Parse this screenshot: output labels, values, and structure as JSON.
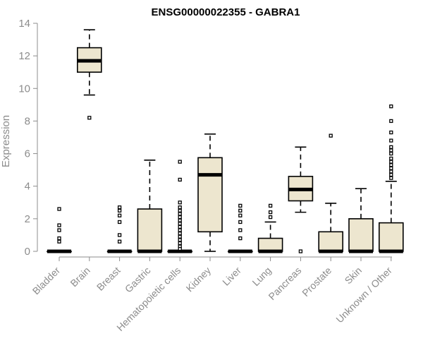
{
  "chart_data": {
    "type": "boxplot",
    "title": "ENSG00000022355 - GABRA1",
    "ylabel": "Expression",
    "xlabel": "",
    "ylim": [
      0,
      14
    ],
    "yticks": [
      0,
      2,
      4,
      6,
      8,
      10,
      12,
      14
    ],
    "box_fill": "#ede6cf",
    "categories": [
      "Bladder",
      "Brain",
      "Breast",
      "Gastric",
      "Hematopoietic cells",
      "Kidney",
      "Liver",
      "Lung",
      "Pancreas",
      "Prostate",
      "Skin",
      "Unknown / Other"
    ],
    "boxes": [
      {
        "category": "Bladder",
        "whisker_low": 0,
        "q1": 0,
        "median": 0,
        "q3": 0,
        "whisker_high": 0,
        "outliers": [
          2.6,
          1.6,
          1.3,
          0.8,
          0.6
        ]
      },
      {
        "category": "Brain",
        "whisker_low": 9.6,
        "q1": 11.0,
        "median": 11.7,
        "q3": 12.5,
        "whisker_high": 13.6,
        "outliers": [
          8.2
        ]
      },
      {
        "category": "Breast",
        "whisker_low": 0,
        "q1": 0,
        "median": 0,
        "q3": 0,
        "whisker_high": 0,
        "outliers": [
          2.7,
          2.5,
          2.2,
          1.8,
          1.0,
          0.6
        ]
      },
      {
        "category": "Gastric",
        "whisker_low": 0,
        "q1": 0,
        "median": 0,
        "q3": 2.6,
        "whisker_high": 5.6,
        "outliers": []
      },
      {
        "category": "Hematopoietic cells",
        "whisker_low": 0,
        "q1": 0,
        "median": 0,
        "q3": 0,
        "whisker_high": 0,
        "outliers": [
          5.5,
          4.4,
          3.0,
          2.7,
          2.5,
          2.3,
          2.1,
          1.9,
          1.7,
          1.5,
          1.3,
          1.1,
          0.9,
          0.7,
          0.5,
          0.3,
          0.15
        ]
      },
      {
        "category": "Kidney",
        "whisker_low": 0,
        "q1": 1.2,
        "median": 4.7,
        "q3": 5.75,
        "whisker_high": 7.2,
        "outliers": []
      },
      {
        "category": "Liver",
        "whisker_low": 0,
        "q1": 0,
        "median": 0,
        "q3": 0,
        "whisker_high": 0,
        "outliers": [
          2.8,
          2.5,
          2.2,
          1.8,
          1.3,
          0.8
        ]
      },
      {
        "category": "Lung",
        "whisker_low": 0,
        "q1": 0,
        "median": 0,
        "q3": 0.8,
        "whisker_high": 1.8,
        "outliers": [
          2.8,
          2.4,
          2.1
        ]
      },
      {
        "category": "Pancreas",
        "whisker_low": 2.4,
        "q1": 3.1,
        "median": 3.8,
        "q3": 4.6,
        "whisker_high": 6.4,
        "outliers": [
          0
        ]
      },
      {
        "category": "Prostate",
        "whisker_low": 0,
        "q1": 0,
        "median": 0,
        "q3": 1.2,
        "whisker_high": 2.95,
        "outliers": [
          7.1
        ]
      },
      {
        "category": "Skin",
        "whisker_low": 0,
        "q1": 0,
        "median": 0,
        "q3": 2.0,
        "whisker_high": 3.85,
        "outliers": []
      },
      {
        "category": "Unknown / Other",
        "whisker_low": 0,
        "q1": 0,
        "median": 0,
        "q3": 1.75,
        "whisker_high": 4.3,
        "outliers": [
          8.9,
          8.0,
          7.3,
          6.8,
          6.4,
          6.2,
          6.0,
          5.7,
          5.5,
          5.3,
          5.1,
          4.9,
          4.7,
          4.5
        ]
      }
    ]
  }
}
